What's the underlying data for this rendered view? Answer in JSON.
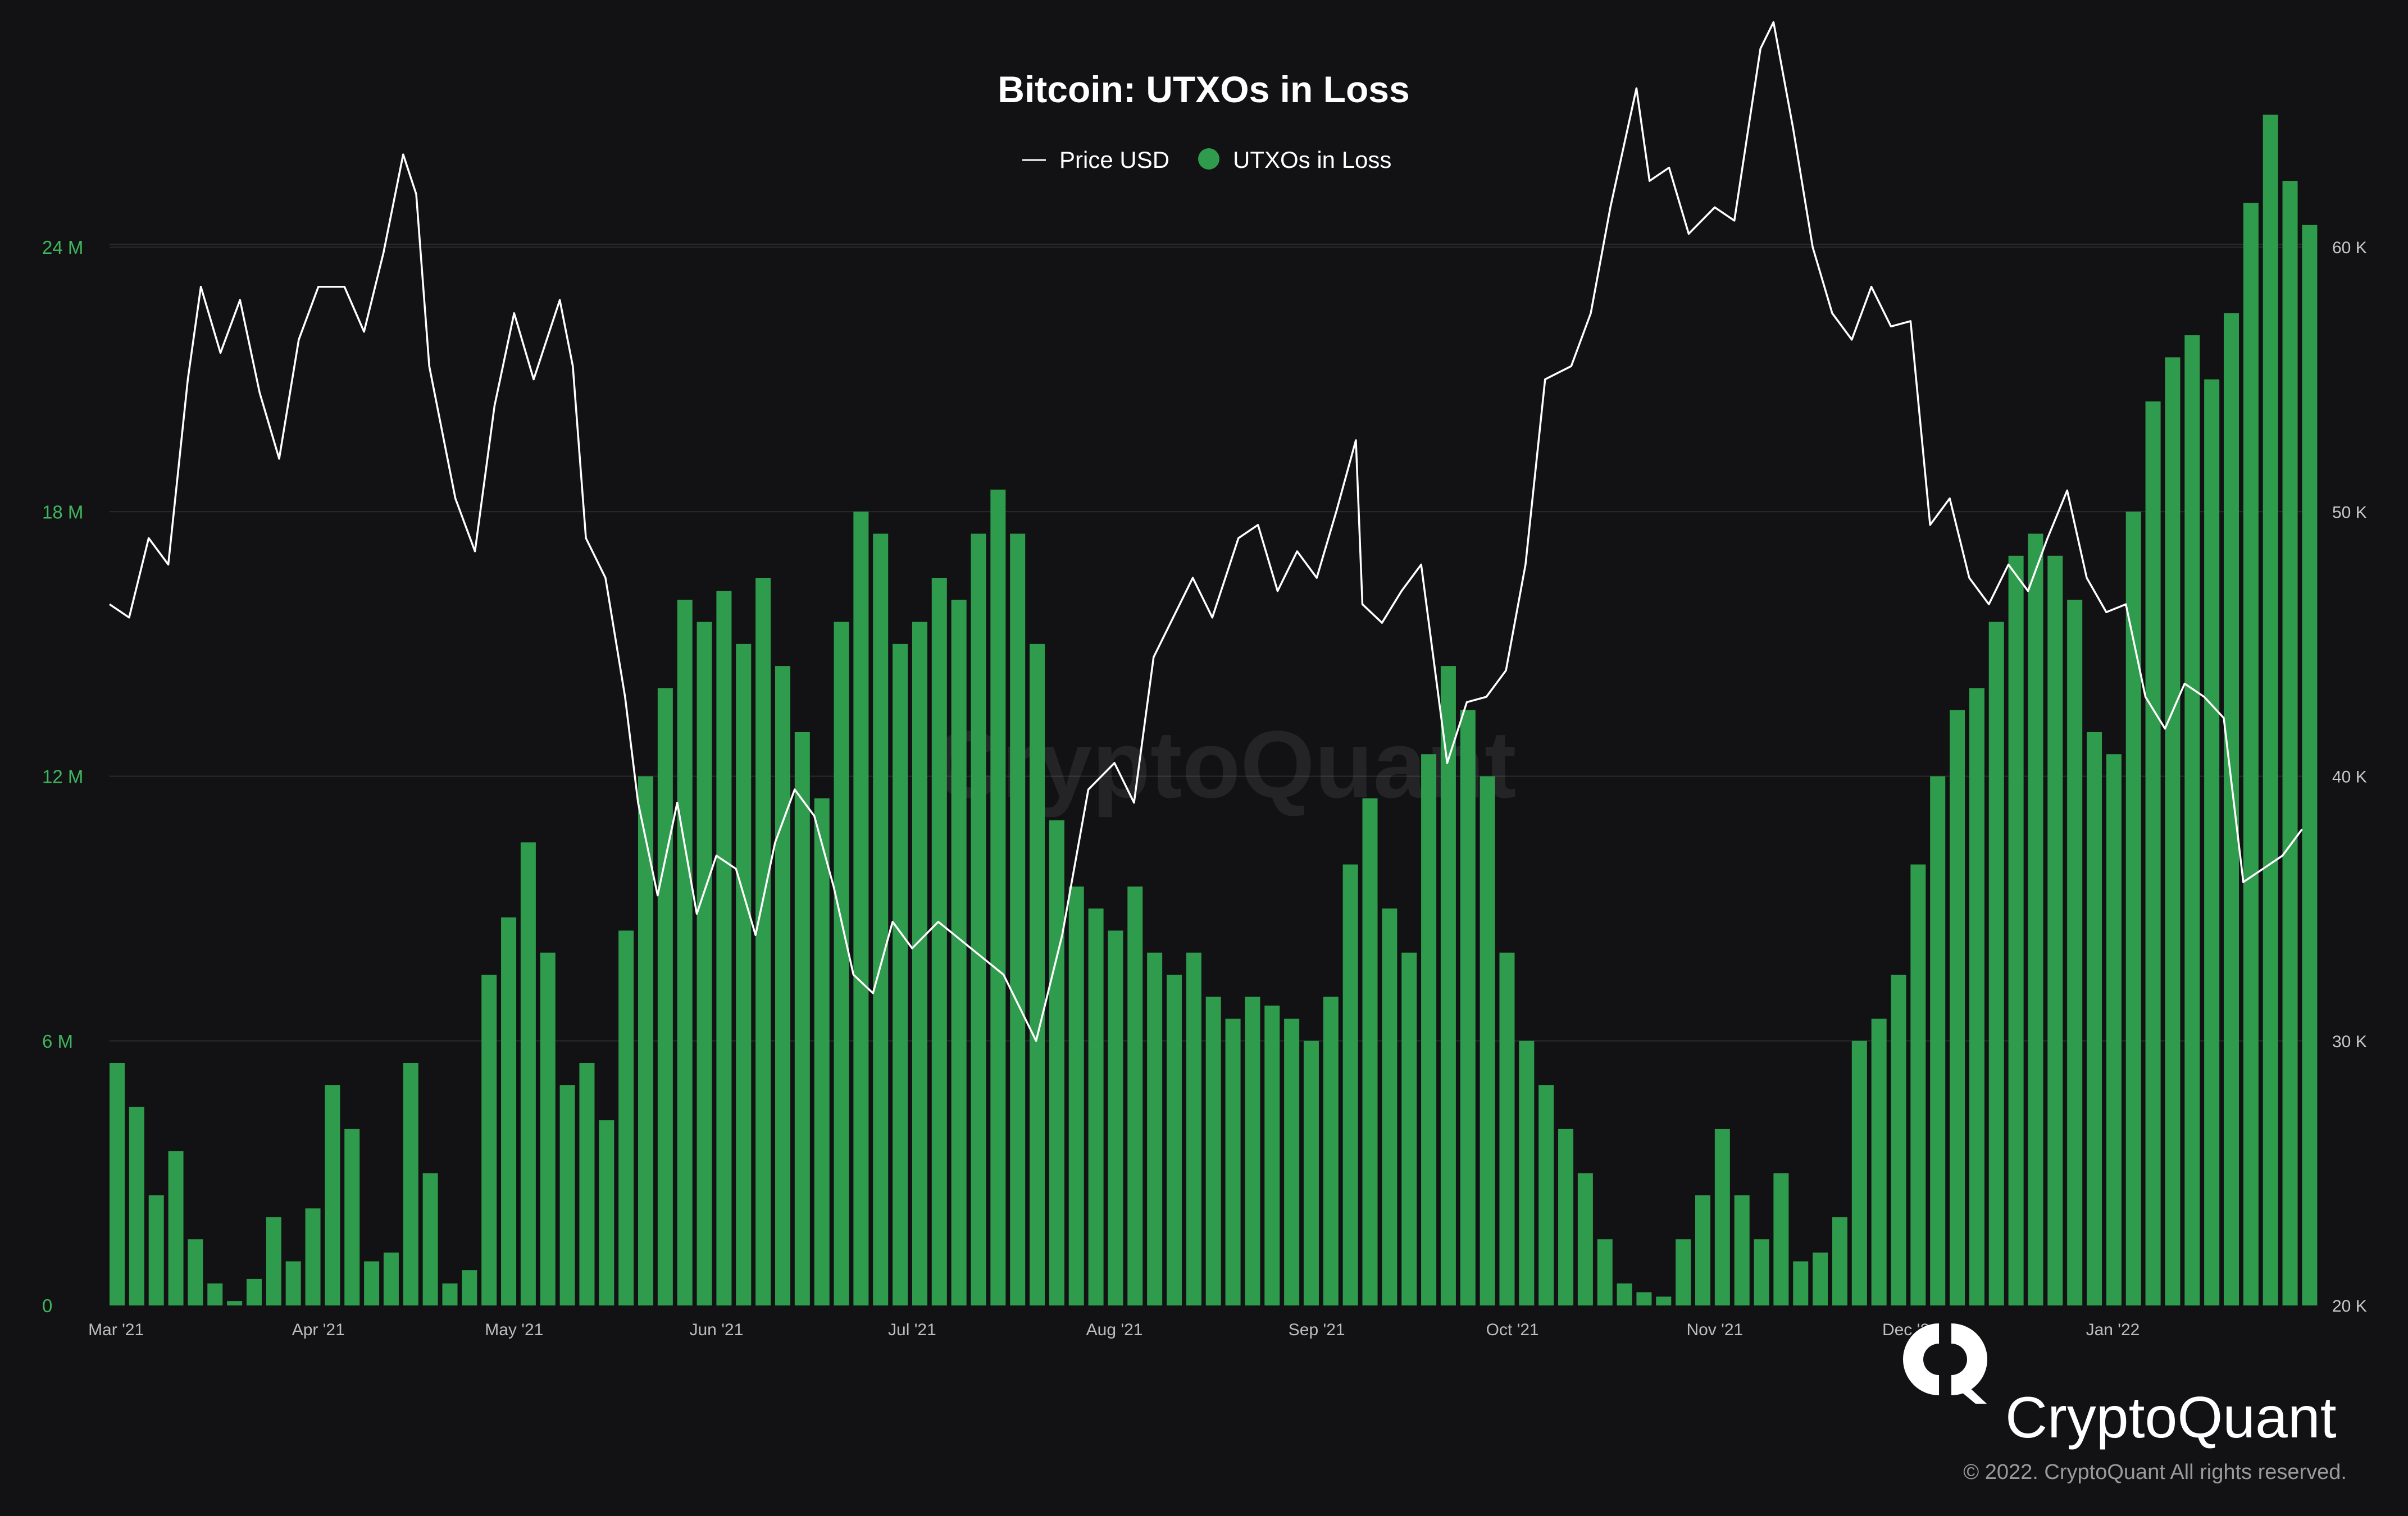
{
  "header": {
    "title": "Bitcoin: UTXOs in Loss"
  },
  "legend": {
    "price_label": "Price USD",
    "utxo_label": "UTXOs in Loss"
  },
  "watermark": "CryptoQuant",
  "branding": {
    "name": "CryptoQuant",
    "copyright": "© 2022. CryptoQuant All rights reserved."
  },
  "colors": {
    "background": "#121214",
    "bar": "#2f9b4c",
    "price_line": "#ffffff",
    "grid": "#2a2a2e",
    "left_axis": "#3fb55e"
  },
  "chart_data": {
    "type": "bar",
    "title": "Bitcoin: UTXOs in Loss",
    "x_start": "2021-02-28",
    "x_end": "2022-01-31",
    "x_ticks": [
      {
        "date": "2021-03-01",
        "label": "Mar '21"
      },
      {
        "date": "2021-04-01",
        "label": "Apr '21"
      },
      {
        "date": "2021-05-01",
        "label": "May '21"
      },
      {
        "date": "2021-06-01",
        "label": "Jun '21"
      },
      {
        "date": "2021-07-01",
        "label": "Jul '21"
      },
      {
        "date": "2021-08-01",
        "label": "Aug '21"
      },
      {
        "date": "2021-09-01",
        "label": "Sep '21"
      },
      {
        "date": "2021-10-01",
        "label": "Oct '21"
      },
      {
        "date": "2021-11-01",
        "label": "Nov '21"
      },
      {
        "date": "2021-12-01",
        "label": "Dec '21"
      },
      {
        "date": "2022-01-01",
        "label": "Jan '22"
      }
    ],
    "y_left": {
      "label": "",
      "ylim": [
        0,
        24000000
      ],
      "ticks": [
        0,
        6000000,
        12000000,
        18000000,
        24000000
      ],
      "tick_labels": [
        "0",
        "6 M",
        "12 M",
        "18 M",
        "24 M"
      ]
    },
    "y_right": {
      "label": "",
      "ylim": [
        20000,
        60000
      ],
      "ticks": [
        20000,
        30000,
        40000,
        50000,
        60000
      ],
      "tick_labels": [
        "20 K",
        "30 K",
        "40 K",
        "50 K",
        "60 K"
      ]
    },
    "grid": true,
    "legend_position": "top-center",
    "series": [
      {
        "name": "UTXOs in Loss",
        "kind": "bar",
        "axis": "left",
        "points": [
          [
            "2021-02-28",
            5.5
          ],
          [
            "2021-03-03",
            4.5
          ],
          [
            "2021-03-06",
            2.5
          ],
          [
            "2021-03-09",
            3.5
          ],
          [
            "2021-03-12",
            1.5
          ],
          [
            "2021-03-15",
            0.5
          ],
          [
            "2021-03-18",
            0.1
          ],
          [
            "2021-03-21",
            0.6
          ],
          [
            "2021-03-24",
            2.0
          ],
          [
            "2021-03-27",
            1.0
          ],
          [
            "2021-03-30",
            2.2
          ],
          [
            "2021-04-02",
            5.0
          ],
          [
            "2021-04-05",
            4.0
          ],
          [
            "2021-04-08",
            1.0
          ],
          [
            "2021-04-11",
            1.2
          ],
          [
            "2021-04-14",
            5.5
          ],
          [
            "2021-04-17",
            3.0
          ],
          [
            "2021-04-20",
            0.5
          ],
          [
            "2021-04-23",
            0.8
          ],
          [
            "2021-04-26",
            7.5
          ],
          [
            "2021-04-29",
            8.8
          ],
          [
            "2021-05-02",
            10.5
          ],
          [
            "2021-05-05",
            8.0
          ],
          [
            "2021-05-08",
            5.0
          ],
          [
            "2021-05-11",
            5.5
          ],
          [
            "2021-05-14",
            4.2
          ],
          [
            "2021-05-17",
            8.5
          ],
          [
            "2021-05-20",
            12.0
          ],
          [
            "2021-05-23",
            14.0
          ],
          [
            "2021-05-26",
            16.0
          ],
          [
            "2021-05-29",
            15.5
          ],
          [
            "2021-06-01",
            16.2
          ],
          [
            "2021-06-04",
            15.0
          ],
          [
            "2021-06-07",
            16.5
          ],
          [
            "2021-06-10",
            14.5
          ],
          [
            "2021-06-13",
            13.0
          ],
          [
            "2021-06-16",
            11.5
          ],
          [
            "2021-06-19",
            15.5
          ],
          [
            "2021-06-22",
            18.0
          ],
          [
            "2021-06-25",
            17.5
          ],
          [
            "2021-06-28",
            15.0
          ],
          [
            "2021-07-01",
            15.5
          ],
          [
            "2021-07-04",
            16.5
          ],
          [
            "2021-07-07",
            16.0
          ],
          [
            "2021-07-10",
            17.5
          ],
          [
            "2021-07-13",
            18.5
          ],
          [
            "2021-07-16",
            17.5
          ],
          [
            "2021-07-19",
            15.0
          ],
          [
            "2021-07-22",
            11.0
          ],
          [
            "2021-07-25",
            9.5
          ],
          [
            "2021-07-28",
            9.0
          ],
          [
            "2021-07-31",
            8.5
          ],
          [
            "2021-08-03",
            9.5
          ],
          [
            "2021-08-06",
            8.0
          ],
          [
            "2021-08-09",
            7.5
          ],
          [
            "2021-08-12",
            8.0
          ],
          [
            "2021-08-15",
            7.0
          ],
          [
            "2021-08-18",
            6.5
          ],
          [
            "2021-08-21",
            7.0
          ],
          [
            "2021-08-24",
            6.8
          ],
          [
            "2021-08-27",
            6.5
          ],
          [
            "2021-08-30",
            6.0
          ],
          [
            "2021-09-02",
            7.0
          ],
          [
            "2021-09-05",
            10.0
          ],
          [
            "2021-09-08",
            11.5
          ],
          [
            "2021-09-11",
            9.0
          ],
          [
            "2021-09-14",
            8.0
          ],
          [
            "2021-09-17",
            12.5
          ],
          [
            "2021-09-20",
            14.5
          ],
          [
            "2021-09-23",
            13.5
          ],
          [
            "2021-09-26",
            12.0
          ],
          [
            "2021-09-29",
            8.0
          ],
          [
            "2021-10-02",
            6.0
          ],
          [
            "2021-10-05",
            5.0
          ],
          [
            "2021-10-08",
            4.0
          ],
          [
            "2021-10-11",
            3.0
          ],
          [
            "2021-10-14",
            1.5
          ],
          [
            "2021-10-17",
            0.5
          ],
          [
            "2021-10-20",
            0.3
          ],
          [
            "2021-10-23",
            0.2
          ],
          [
            "2021-10-26",
            1.5
          ],
          [
            "2021-10-29",
            2.5
          ],
          [
            "2021-11-01",
            4.0
          ],
          [
            "2021-11-04",
            2.5
          ],
          [
            "2021-11-07",
            1.5
          ],
          [
            "2021-11-10",
            3.0
          ],
          [
            "2021-11-13",
            1.0
          ],
          [
            "2021-11-16",
            1.2
          ],
          [
            "2021-11-19",
            2.0
          ],
          [
            "2021-11-22",
            6.0
          ],
          [
            "2021-11-25",
            6.5
          ],
          [
            "2021-11-28",
            7.5
          ],
          [
            "2021-12-01",
            10.0
          ],
          [
            "2021-12-04",
            12.0
          ],
          [
            "2021-12-07",
            13.5
          ],
          [
            "2021-12-10",
            14.0
          ],
          [
            "2021-12-13",
            15.5
          ],
          [
            "2021-12-16",
            17.0
          ],
          [
            "2021-12-19",
            17.5
          ],
          [
            "2021-12-22",
            17.0
          ],
          [
            "2021-12-25",
            16.0
          ],
          [
            "2021-12-28",
            13.0
          ],
          [
            "2021-12-31",
            12.5
          ],
          [
            "2022-01-03",
            18.0
          ],
          [
            "2022-01-06",
            20.5
          ],
          [
            "2022-01-09",
            21.5
          ],
          [
            "2022-01-12",
            22.0
          ],
          [
            "2022-01-15",
            21.0
          ],
          [
            "2022-01-18",
            22.5
          ],
          [
            "2022-01-21",
            25.0
          ],
          [
            "2022-01-24",
            27.0
          ],
          [
            "2022-01-27",
            25.5
          ],
          [
            "2022-01-30",
            24.5
          ]
        ]
      },
      {
        "name": "Price USD",
        "kind": "line",
        "axis": "right",
        "points": [
          [
            "2021-02-28",
            46500
          ],
          [
            "2021-03-03",
            46000
          ],
          [
            "2021-03-06",
            49000
          ],
          [
            "2021-03-09",
            48000
          ],
          [
            "2021-03-12",
            55000
          ],
          [
            "2021-03-14",
            58500
          ],
          [
            "2021-03-17",
            56000
          ],
          [
            "2021-03-20",
            58000
          ],
          [
            "2021-03-23",
            54500
          ],
          [
            "2021-03-26",
            52000
          ],
          [
            "2021-03-29",
            56500
          ],
          [
            "2021-04-01",
            58500
          ],
          [
            "2021-04-05",
            58500
          ],
          [
            "2021-04-08",
            56800
          ],
          [
            "2021-04-11",
            59800
          ],
          [
            "2021-04-14",
            63500
          ],
          [
            "2021-04-16",
            62000
          ],
          [
            "2021-04-18",
            55500
          ],
          [
            "2021-04-22",
            50500
          ],
          [
            "2021-04-25",
            48500
          ],
          [
            "2021-04-28",
            54000
          ],
          [
            "2021-05-01",
            57500
          ],
          [
            "2021-05-04",
            55000
          ],
          [
            "2021-05-08",
            58000
          ],
          [
            "2021-05-10",
            55500
          ],
          [
            "2021-05-12",
            49000
          ],
          [
            "2021-05-15",
            47500
          ],
          [
            "2021-05-18",
            43000
          ],
          [
            "2021-05-20",
            39000
          ],
          [
            "2021-05-23",
            35500
          ],
          [
            "2021-05-26",
            39000
          ],
          [
            "2021-05-29",
            34800
          ],
          [
            "2021-06-01",
            37000
          ],
          [
            "2021-06-04",
            36500
          ],
          [
            "2021-06-07",
            34000
          ],
          [
            "2021-06-10",
            37500
          ],
          [
            "2021-06-13",
            39500
          ],
          [
            "2021-06-16",
            38500
          ],
          [
            "2021-06-19",
            35800
          ],
          [
            "2021-06-22",
            32500
          ],
          [
            "2021-06-25",
            31800
          ],
          [
            "2021-06-28",
            34500
          ],
          [
            "2021-07-01",
            33500
          ],
          [
            "2021-07-05",
            34500
          ],
          [
            "2021-07-10",
            33500
          ],
          [
            "2021-07-15",
            32500
          ],
          [
            "2021-07-20",
            30000
          ],
          [
            "2021-07-24",
            34000
          ],
          [
            "2021-07-28",
            39500
          ],
          [
            "2021-08-01",
            40500
          ],
          [
            "2021-08-04",
            39000
          ],
          [
            "2021-08-07",
            44500
          ],
          [
            "2021-08-10",
            46000
          ],
          [
            "2021-08-13",
            47500
          ],
          [
            "2021-08-16",
            46000
          ],
          [
            "2021-08-20",
            49000
          ],
          [
            "2021-08-23",
            49500
          ],
          [
            "2021-08-26",
            47000
          ],
          [
            "2021-08-29",
            48500
          ],
          [
            "2021-09-01",
            47500
          ],
          [
            "2021-09-04",
            50000
          ],
          [
            "2021-09-07",
            52700
          ],
          [
            "2021-09-08",
            46500
          ],
          [
            "2021-09-11",
            45800
          ],
          [
            "2021-09-14",
            47000
          ],
          [
            "2021-09-17",
            48000
          ],
          [
            "2021-09-21",
            40500
          ],
          [
            "2021-09-24",
            42800
          ],
          [
            "2021-09-27",
            43000
          ],
          [
            "2021-09-30",
            44000
          ],
          [
            "2021-10-03",
            48000
          ],
          [
            "2021-10-06",
            55000
          ],
          [
            "2021-10-10",
            55500
          ],
          [
            "2021-10-13",
            57500
          ],
          [
            "2021-10-16",
            61500
          ],
          [
            "2021-10-20",
            66000
          ],
          [
            "2021-10-22",
            62500
          ],
          [
            "2021-10-25",
            63000
          ],
          [
            "2021-10-28",
            60500
          ],
          [
            "2021-11-01",
            61500
          ],
          [
            "2021-11-04",
            61000
          ],
          [
            "2021-11-08",
            67500
          ],
          [
            "2021-11-10",
            68500
          ],
          [
            "2021-11-13",
            64500
          ],
          [
            "2021-11-16",
            60000
          ],
          [
            "2021-11-19",
            57500
          ],
          [
            "2021-11-22",
            56500
          ],
          [
            "2021-11-25",
            58500
          ],
          [
            "2021-11-28",
            57000
          ],
          [
            "2021-12-01",
            57200
          ],
          [
            "2021-12-04",
            49500
          ],
          [
            "2021-12-07",
            50500
          ],
          [
            "2021-12-10",
            47500
          ],
          [
            "2021-12-13",
            46500
          ],
          [
            "2021-12-16",
            48000
          ],
          [
            "2021-12-19",
            47000
          ],
          [
            "2021-12-22",
            49000
          ],
          [
            "2021-12-25",
            50800
          ],
          [
            "2021-12-28",
            47500
          ],
          [
            "2021-12-31",
            46200
          ],
          [
            "2022-01-03",
            46500
          ],
          [
            "2022-01-06",
            43000
          ],
          [
            "2022-01-09",
            41800
          ],
          [
            "2022-01-12",
            43500
          ],
          [
            "2022-01-15",
            43000
          ],
          [
            "2022-01-18",
            42200
          ],
          [
            "2022-01-21",
            36000
          ],
          [
            "2022-01-24",
            36500
          ],
          [
            "2022-01-27",
            37000
          ],
          [
            "2022-01-30",
            38000
          ]
        ]
      }
    ]
  }
}
